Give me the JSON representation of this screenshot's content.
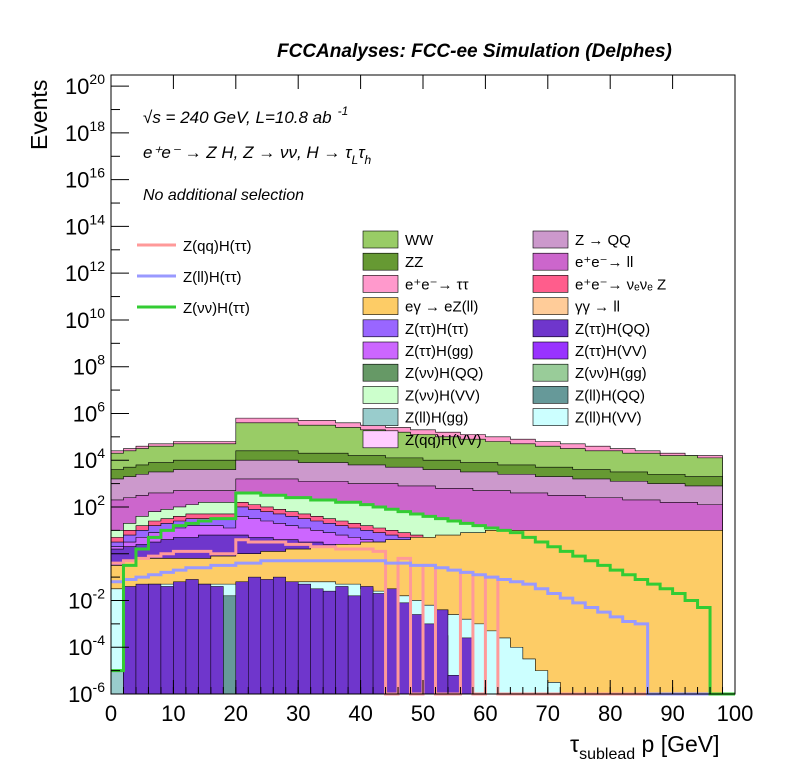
{
  "header": {
    "title": "FCCAnalyses: FCC-ee Simulation (Delphes)"
  },
  "annotations": {
    "energy": "√s = 240 GeV, L=10.8 ab",
    "energy_exp": "-1",
    "process": "e⁺e⁻ → Z H, Z → νν, H → τ",
    "process_sub1": "L",
    "process_tau": "τ",
    "process_sub2": "h",
    "selection": "No additional selection"
  },
  "axes": {
    "ylabel": "Events",
    "xlabel_main": "τ",
    "xlabel_sub": "sublead",
    "xlabel_rest": " p [GeV]"
  },
  "chart_data": {
    "type": "area",
    "title": "FCCAnalyses: FCC-ee Simulation (Delphes)",
    "xlabel": "τ_sublead p [GeV]",
    "ylabel": "Events",
    "xlim": [
      0,
      100
    ],
    "ylim": [
      1e-06,
      3e+20
    ],
    "yscale": "log",
    "bin_width": 2,
    "x_ticks": [
      0,
      10,
      20,
      30,
      40,
      50,
      60,
      70,
      80,
      90,
      100
    ],
    "y_tick_labels": [
      "10^-6",
      "10^-4",
      "10^-2",
      "1",
      "10^2",
      "10^4",
      "10^6",
      "10^8",
      "10^10",
      "10^12",
      "10^14",
      "10^16",
      "10^18",
      "10^20"
    ],
    "stack_layers": [
      {
        "name": "Z(ll)H(VV)",
        "color": "#ccffff",
        "level_log10": [
          -1.5,
          -1.5,
          -1.4,
          -1.3,
          -1.3,
          -1.3,
          -1.3,
          -1.3,
          -1.3,
          -1.3,
          -1.2,
          -1.2,
          -1.2,
          -1.2,
          -1.2,
          -1.2,
          -1.2,
          -1.2,
          -1.3,
          -1.3,
          -1.5,
          -1.6,
          -1.7,
          -1.8,
          -2.0,
          -2.2,
          -2.4,
          -2.6,
          -2.8,
          -3.0,
          -3.3,
          -3.6,
          -4.0,
          -4.5,
          -5.0,
          -5.5,
          -6.0,
          -6.0,
          -6.0,
          -6.0,
          -6.0,
          -6.0,
          -6.0,
          -6.0,
          -6.0,
          -6.0,
          -6.0,
          -6.0,
          -6.0,
          -6.0
        ]
      },
      {
        "name": "eγ → eZ(ll)",
        "color": "#fdcc66",
        "level_log10": [
          -0.5,
          -0.3,
          -0.2,
          -0.2,
          -0.2,
          -0.2,
          -0.2,
          -0.2,
          -0.1,
          -0.1,
          0.0,
          0.0,
          0.1,
          0.1,
          0.2,
          0.2,
          0.3,
          0.3,
          0.4,
          0.4,
          0.5,
          0.5,
          0.6,
          0.6,
          0.7,
          0.7,
          0.8,
          0.8,
          0.9,
          0.9,
          1.0,
          1.0,
          1.0,
          1.0,
          1.0,
          1.0,
          1.0,
          1.0,
          1.0,
          1.0,
          1.0,
          1.0,
          1.0,
          1.0,
          1.0,
          1.0,
          1.0,
          1.0,
          1.0,
          -6.0
        ]
      },
      {
        "name": "Z(ττ)H(QQ)",
        "color": "#6f36cc",
        "level_log10": [
          0.2,
          0.3,
          0.4,
          0.5,
          0.6,
          0.7,
          0.7,
          0.8,
          0.8,
          0.8,
          0.8,
          0.7,
          0.7,
          0.6,
          0.6,
          0.5,
          0.5,
          0.4,
          0.4,
          0.3,
          0.3,
          0.2,
          0.2,
          0.1,
          0.1,
          0.0,
          0.0,
          -0.1,
          -0.1,
          -0.2,
          0.9,
          0.9,
          1.0,
          1.0,
          1.0,
          1.0,
          1.0,
          1.0,
          1.0,
          1.0,
          1.0,
          1.0,
          1.0,
          1.0,
          1.0,
          1.0,
          1.0,
          1.0,
          1.0,
          -6.0
        ]
      },
      {
        "name": "Z(ττ)H(gg)",
        "color": "#cc66ff",
        "level_log10": [
          0.3,
          0.5,
          0.7,
          0.9,
          1.0,
          1.1,
          1.2,
          1.2,
          1.2,
          1.1,
          1.6,
          1.5,
          1.4,
          1.3,
          1.2,
          1.1,
          1.0,
          0.9,
          0.8,
          0.7,
          0.6,
          0.5,
          0.4,
          0.3,
          0.2,
          0.1,
          0.0,
          -0.1,
          -0.2,
          -0.3,
          1.0,
          1.0,
          1.0,
          1.0,
          1.0,
          1.0,
          1.0,
          1.0,
          1.0,
          1.0,
          1.0,
          1.0,
          1.0,
          1.0,
          1.0,
          1.0,
          1.0,
          1.0,
          1.0,
          -6.0
        ]
      },
      {
        "name": "Z(ττ)H(ττ)",
        "color": "#9966ff",
        "level_log10": [
          0.5,
          0.8,
          1.0,
          1.2,
          1.3,
          1.4,
          1.5,
          1.5,
          1.5,
          1.5,
          2.0,
          1.9,
          1.8,
          1.7,
          1.6,
          1.5,
          1.4,
          1.3,
          1.2,
          1.1,
          1.0,
          0.9,
          0.8,
          0.7,
          0.6,
          0.5,
          0.4,
          0.3,
          0.2,
          0.1,
          1.0,
          1.0,
          1.0,
          1.0,
          1.0,
          1.0,
          1.0,
          1.0,
          1.0,
          1.0,
          1.0,
          1.0,
          1.0,
          1.0,
          1.0,
          1.0,
          1.0,
          1.0,
          1.0,
          -6.0
        ]
      },
      {
        "name": "e⁺e⁻ → νₑνₑ Z",
        "color": "#ff5d8c",
        "level_log10": [
          0.7,
          1.0,
          1.2,
          1.4,
          1.5,
          1.6,
          1.7,
          1.7,
          1.7,
          1.7,
          2.2,
          2.1,
          2.0,
          1.9,
          1.8,
          1.7,
          1.6,
          1.5,
          1.4,
          1.3,
          1.2,
          1.1,
          1.0,
          0.9,
          0.8,
          0.7,
          0.6,
          0.5,
          0.4,
          0.3,
          1.0,
          1.0,
          1.0,
          1.0,
          1.0,
          1.0,
          1.0,
          1.0,
          1.0,
          1.0,
          1.0,
          1.0,
          1.0,
          1.0,
          1.0,
          1.0,
          1.0,
          1.0,
          1.0,
          -6.0
        ]
      },
      {
        "name": "Z(νν)H(VV)",
        "color": "#ccffcc",
        "level_log10": [
          1.0,
          1.3,
          1.6,
          1.8,
          1.9,
          2.0,
          2.1,
          2.2,
          2.2,
          2.2,
          2.6,
          2.6,
          2.5,
          2.5,
          2.4,
          2.4,
          2.3,
          2.3,
          2.2,
          2.2,
          2.1,
          2.0,
          1.9,
          1.8,
          1.7,
          1.6,
          1.5,
          1.4,
          1.3,
          1.2,
          1.1,
          1.0,
          1.0,
          1.0,
          1.0,
          1.0,
          1.0,
          1.0,
          1.0,
          1.0,
          1.0,
          1.0,
          1.0,
          1.0,
          1.0,
          1.0,
          1.0,
          1.0,
          1.0,
          -6.0
        ]
      },
      {
        "name": "e⁺e⁻→ ll",
        "color": "#cc66cc",
        "level_log10": [
          2.3,
          2.4,
          2.5,
          2.6,
          2.6,
          2.7,
          2.7,
          2.7,
          2.7,
          2.7,
          3.2,
          3.2,
          3.2,
          3.2,
          3.2,
          3.1,
          3.1,
          3.1,
          3.1,
          3.0,
          3.0,
          3.0,
          3.0,
          2.9,
          2.9,
          2.9,
          2.8,
          2.8,
          2.8,
          2.7,
          2.7,
          2.7,
          2.6,
          2.6,
          2.6,
          2.5,
          2.5,
          2.5,
          2.4,
          2.4,
          2.4,
          2.3,
          2.3,
          2.3,
          2.2,
          2.2,
          2.2,
          2.1,
          2.1,
          -6.0
        ]
      },
      {
        "name": "Z → QQ",
        "color": "#cc99cc",
        "level_log10": [
          3.2,
          3.3,
          3.4,
          3.5,
          3.5,
          3.6,
          3.6,
          3.6,
          3.6,
          3.6,
          4.0,
          4.0,
          4.0,
          4.0,
          4.0,
          3.9,
          3.9,
          3.9,
          3.9,
          3.8,
          3.8,
          3.8,
          3.7,
          3.7,
          3.7,
          3.6,
          3.6,
          3.6,
          3.5,
          3.5,
          3.5,
          3.4,
          3.4,
          3.4,
          3.3,
          3.3,
          3.3,
          3.2,
          3.2,
          3.2,
          3.1,
          3.1,
          3.1,
          3.0,
          3.0,
          3.0,
          2.9,
          2.9,
          2.9,
          -6.0
        ]
      },
      {
        "name": "ZZ",
        "color": "#669933",
        "level_log10": [
          3.6,
          3.7,
          3.8,
          3.9,
          3.9,
          4.0,
          4.0,
          4.0,
          4.0,
          4.0,
          4.4,
          4.4,
          4.4,
          4.4,
          4.4,
          4.3,
          4.3,
          4.3,
          4.3,
          4.2,
          4.2,
          4.2,
          4.1,
          4.1,
          4.1,
          4.0,
          4.0,
          4.0,
          3.9,
          3.9,
          3.9,
          3.8,
          3.8,
          3.8,
          3.7,
          3.7,
          3.7,
          3.6,
          3.6,
          3.6,
          3.5,
          3.5,
          3.5,
          3.4,
          3.4,
          3.4,
          3.3,
          3.3,
          3.3,
          -6.0
        ]
      },
      {
        "name": "WW",
        "color": "#99cc66",
        "level_log10": [
          4.3,
          4.4,
          4.5,
          4.6,
          4.6,
          4.7,
          4.7,
          4.7,
          4.7,
          4.7,
          5.6,
          5.6,
          5.6,
          5.6,
          5.6,
          5.5,
          5.5,
          5.5,
          5.4,
          5.4,
          5.3,
          5.3,
          5.2,
          5.2,
          5.1,
          5.1,
          5.0,
          5.0,
          4.9,
          4.9,
          4.8,
          4.8,
          4.7,
          4.7,
          4.6,
          4.6,
          4.5,
          4.5,
          4.4,
          4.4,
          4.4,
          4.3,
          4.3,
          4.3,
          4.2,
          4.2,
          4.2,
          4.1,
          4.1,
          -6.0
        ]
      },
      {
        "name": "e⁺e⁻→ ττ",
        "color": "#ff99cc",
        "level_log10": [
          4.4,
          4.5,
          4.6,
          4.7,
          4.7,
          4.8,
          4.8,
          4.8,
          4.8,
          4.8,
          5.8,
          5.8,
          5.8,
          5.8,
          5.8,
          5.7,
          5.7,
          5.7,
          5.6,
          5.6,
          5.5,
          5.5,
          5.4,
          5.4,
          5.3,
          5.3,
          5.2,
          5.2,
          5.1,
          5.1,
          5.0,
          5.0,
          4.9,
          4.9,
          4.8,
          4.8,
          4.7,
          4.7,
          4.6,
          4.6,
          4.5,
          4.5,
          4.4,
          4.4,
          4.3,
          4.3,
          4.2,
          4.2,
          4.2,
          -6.0
        ]
      }
    ],
    "spiky_layers": [
      {
        "name": "Z(ll)H(gg)",
        "color": "#99cccc",
        "level_log10": [
          -5.0,
          -2.5,
          -2.8,
          -6.0,
          -2.6,
          -6.0,
          -2.9,
          -6.0,
          -2.7,
          -6.0,
          -2.4,
          -6.0,
          -2.9,
          -6.0,
          -3.0,
          -6.0,
          -3.1,
          -6.0,
          -6.0,
          -3.5,
          -6.0,
          -6.0,
          -3.9,
          -6.0,
          -6.0,
          -6.0,
          -6.0,
          -6.0,
          -6.0,
          -6.0,
          -6.0,
          -6.0,
          -6.0,
          -6.0,
          -6.0,
          -6.0,
          -6.0,
          -6.0,
          -6.0,
          -6.0,
          -6.0,
          -6.0,
          -6.0,
          -6.0,
          -6.0,
          -6.0,
          -6.0,
          -6.0,
          -6.0,
          -6.0
        ]
      },
      {
        "name": "Z(ll)H(QQ)",
        "color": "#669999",
        "level_log10": [
          -6.0,
          -6.0,
          -1.8,
          -1.9,
          -6.0,
          -1.7,
          -2.0,
          -1.8,
          -2.3,
          -1.8,
          -1.9,
          -2.0,
          -6.0,
          -1.7,
          -2.1,
          -2.1,
          -6.0,
          -2.6,
          -6.0,
          -2.4,
          -6.0,
          -2.8,
          -6.0,
          -3.1,
          -6.0,
          -6.0,
          -3.5,
          -6.0,
          -6.0,
          -6.0,
          -6.0,
          -6.0,
          -6.0,
          -6.0,
          -6.0,
          -6.0,
          -6.0,
          -6.0,
          -6.0,
          -6.0,
          -6.0,
          -6.0,
          -6.0,
          -6.0,
          -6.0,
          -6.0,
          -6.0,
          -6.0,
          -6.0,
          -6.0
        ]
      },
      {
        "name": "Z(ττ)H(QQ) bins",
        "color": "#6f36cc",
        "level_log10": [
          -6.0,
          -1.4,
          -1.3,
          -1.3,
          -1.4,
          -1.2,
          -1.1,
          -1.3,
          -1.4,
          -6.0,
          -1.2,
          -1.0,
          -1.1,
          -1.0,
          -1.2,
          -1.3,
          -1.5,
          -1.6,
          -1.4,
          -1.8,
          -1.4,
          -1.7,
          -1.5,
          -2.1,
          -2.6,
          -3.0,
          -2.4,
          -5.2,
          -3.6,
          -6.0,
          -6.0,
          -6.0,
          -6.0,
          -6.0,
          -6.0,
          -6.0,
          -6.0,
          -6.0,
          -6.0,
          -6.0,
          -6.0,
          -6.0,
          -6.0,
          -6.0,
          -6.0,
          -6.0,
          -6.0,
          -6.0,
          -6.0,
          -6.0
        ]
      }
    ],
    "line_series": [
      {
        "name": "Z(qq)H(ττ)",
        "color": "#ff9999",
        "level_log10": [
          -0.4,
          -0.3,
          -0.2,
          -0.1,
          0.0,
          0.1,
          0.1,
          0.1,
          0.0,
          0.0,
          0.6,
          0.5,
          0.5,
          0.5,
          0.4,
          0.4,
          0.3,
          0.3,
          0.2,
          0.2,
          0.2,
          0.1,
          -6.0,
          -0.2,
          -6.0,
          -0.5,
          -6.0,
          -6.0,
          -0.8,
          -6.0,
          -1.0,
          -6.0,
          -6.0,
          -6.0,
          -6.0,
          -6.0,
          -6.0,
          -6.0,
          -6.0,
          -6.0,
          -6.0,
          -6.0,
          -6.0,
          -6.0,
          -6.0,
          -6.0,
          -6.0,
          -6.0,
          -6.0,
          -6.0
        ]
      },
      {
        "name": "Z(ll)H(ττ)",
        "color": "#9999ff",
        "level_log10": [
          -1.2,
          -1.1,
          -1.0,
          -0.9,
          -0.8,
          -0.7,
          -0.6,
          -0.6,
          -0.5,
          -0.5,
          -0.4,
          -0.4,
          -0.3,
          -0.3,
          -0.3,
          -0.3,
          -0.3,
          -0.3,
          -0.3,
          -0.3,
          -0.3,
          -0.3,
          -0.4,
          -0.4,
          -0.5,
          -0.5,
          -0.6,
          -0.7,
          -0.8,
          -0.9,
          -1.0,
          -1.1,
          -1.2,
          -1.3,
          -1.5,
          -1.7,
          -1.9,
          -2.1,
          -2.3,
          -2.5,
          -2.7,
          -2.9,
          -3.0,
          -6.0,
          -6.0,
          -6.0,
          -6.0,
          -6.0,
          -6.0,
          -6.0
        ]
      },
      {
        "name": "Z(νν)H(ττ)",
        "color": "#33cc33",
        "level_log10": [
          -5.0,
          -0.5,
          0.2,
          0.7,
          1.0,
          1.2,
          1.3,
          1.4,
          1.5,
          1.5,
          2.6,
          2.6,
          2.5,
          2.5,
          2.4,
          2.4,
          2.3,
          2.3,
          2.2,
          2.2,
          2.1,
          2.0,
          1.9,
          1.8,
          1.7,
          1.6,
          1.5,
          1.4,
          1.3,
          1.2,
          1.1,
          1.0,
          0.9,
          0.7,
          0.5,
          0.3,
          0.1,
          -0.1,
          -0.3,
          -0.5,
          -0.7,
          -0.9,
          -1.1,
          -1.3,
          -1.5,
          -1.7,
          -2.0,
          -2.3,
          -6.0,
          -6.0
        ]
      }
    ],
    "legend": {
      "left": [
        {
          "label": "Z(qq)H(ττ)",
          "color": "#ff9999"
        },
        {
          "label": "Z(ll)H(ττ)",
          "color": "#9999ff"
        },
        {
          "label": "Z(νν)H(ττ)",
          "color": "#33cc33"
        }
      ],
      "col1": [
        {
          "label": "WW",
          "color": "#99cc66"
        },
        {
          "label": "ZZ",
          "color": "#669933"
        },
        {
          "label": "e⁺e⁻→ ττ",
          "color": "#ff99cc"
        },
        {
          "label": "eγ → eZ(ll)",
          "color": "#fdcc66"
        },
        {
          "label": "Z(ττ)H(ττ)",
          "color": "#9966ff"
        },
        {
          "label": "Z(ττ)H(gg)",
          "color": "#cc66ff"
        },
        {
          "label": "Z(νν)H(QQ)",
          "color": "#669966"
        },
        {
          "label": "Z(νν)H(VV)",
          "color": "#ccffcc"
        },
        {
          "label": "Z(ll)H(gg)",
          "color": "#99cccc"
        },
        {
          "label": "Z(qq)H(VV)",
          "color": "#ffccff"
        }
      ],
      "col2": [
        {
          "label": "Z → QQ",
          "color": "#cc99cc"
        },
        {
          "label": "e⁺e⁻→ ll",
          "color": "#cc66cc"
        },
        {
          "label": "e⁺e⁻→ νₑνₑ Z",
          "color": "#ff5d8c"
        },
        {
          "label": "γγ → ll",
          "color": "#ffcc99"
        },
        {
          "label": "Z(ττ)H(QQ)",
          "color": "#6f36cc"
        },
        {
          "label": "Z(ττ)H(VV)",
          "color": "#9933ff"
        },
        {
          "label": "Z(νν)H(gg)",
          "color": "#99cc99"
        },
        {
          "label": "Z(ll)H(QQ)",
          "color": "#669999"
        },
        {
          "label": "Z(ll)H(VV)",
          "color": "#ccffff"
        }
      ]
    }
  }
}
